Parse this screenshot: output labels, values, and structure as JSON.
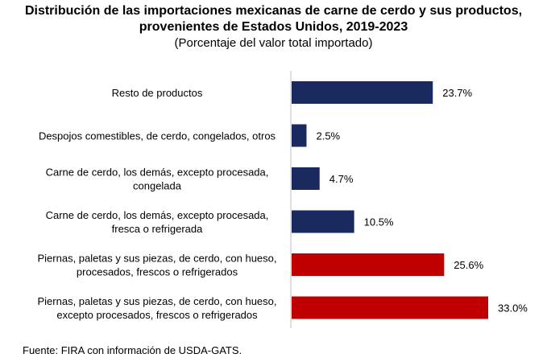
{
  "chart_data": {
    "type": "bar",
    "orientation": "horizontal",
    "title": "Distribución de las importaciones mexicanas de carne de cerdo y sus productos, provenientes de Estados Unidos, 2019-2023",
    "title_lines": [
      "Distribución de las importaciones mexicanas de carne de cerdo y sus productos,",
      "provenientes de Estados Unidos, 2019-2023"
    ],
    "subtitle": "(Porcentaje del valor total importado)",
    "categories": [
      [
        "Resto de productos"
      ],
      [
        "Despojos comestibles, de cerdo, congelados, otros"
      ],
      [
        "Carne de cerdo, los demás, excepto procesada,",
        "congelada"
      ],
      [
        "Carne de cerdo, los demás, excepto procesada,",
        "fresca o refrigerada"
      ],
      [
        "Piernas, paletas y sus piezas, de cerdo, con hueso,",
        "procesados, frescos o refrigerados"
      ],
      [
        "Piernas, paletas y sus piezas, de cerdo, con hueso,",
        "excepto procesados, frescos o refrigerados"
      ]
    ],
    "values": [
      23.7,
      2.5,
      4.7,
      10.5,
      25.6,
      33.0
    ],
    "value_labels": [
      "23.7%",
      "2.5%",
      "4.7%",
      "10.5%",
      "25.6%",
      "33.0%"
    ],
    "bar_colors": [
      "#1b2a5e",
      "#1b2a5e",
      "#1b2a5e",
      "#1b2a5e",
      "#c00000",
      "#c00000"
    ],
    "xlim": [
      0,
      33.0
    ],
    "grid": false,
    "legend": "none"
  },
  "source": "Fuente: FIRA con información de USDA-GATS."
}
